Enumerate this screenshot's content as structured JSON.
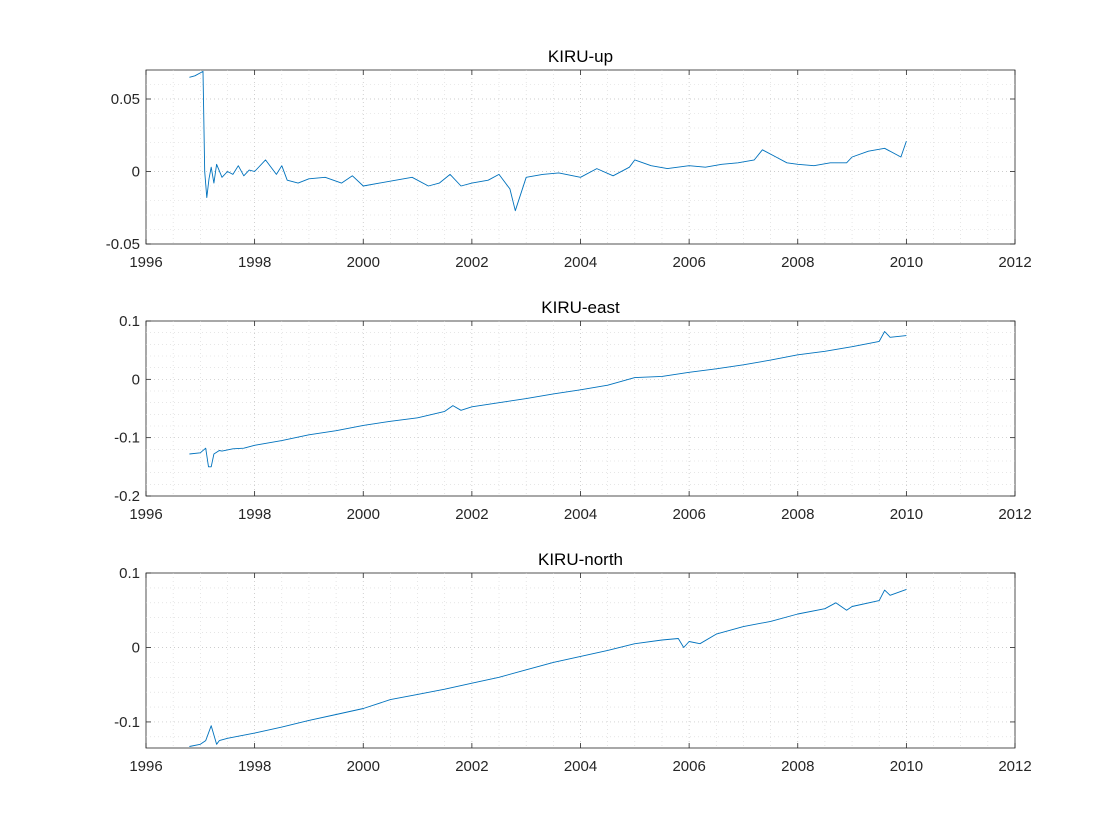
{
  "line_color": "#0072BD",
  "chart_data": [
    {
      "type": "line",
      "title": "KIRU-up",
      "xlim": [
        1996,
        2012
      ],
      "ylim": [
        -0.05,
        0.07
      ],
      "xticks": [
        1996,
        1998,
        2000,
        2002,
        2004,
        2006,
        2008,
        2010,
        2012
      ],
      "xtick_labels": [
        "1996",
        "1998",
        "2000",
        "2002",
        "2004",
        "2006",
        "2008",
        "2010",
        "2012"
      ],
      "yticks": [
        -0.05,
        0,
        0.05
      ],
      "ytick_labels": [
        "-0.05",
        "0",
        "0.05"
      ],
      "grid": "on (dotted, with minor grid)",
      "series": [
        {
          "x": [
            1996.8,
            1996.9,
            1997.0,
            1997.05,
            1997.08,
            1997.12,
            1997.16,
            1997.2,
            1997.25,
            1997.3,
            1997.4,
            1997.5,
            1997.6,
            1997.7,
            1997.8,
            1997.9,
            1998.0,
            1998.2,
            1998.4,
            1998.5,
            1998.6,
            1998.8,
            1999.0,
            1999.3,
            1999.6,
            1999.8,
            2000.0,
            2000.3,
            2000.6,
            2000.9,
            2001.2,
            2001.4,
            2001.6,
            2001.8,
            2002.0,
            2002.3,
            2002.5,
            2002.7,
            2002.8,
            2003.0,
            2003.3,
            2003.6,
            2004.0,
            2004.3,
            2004.6,
            2004.9,
            2005.0,
            2005.3,
            2005.6,
            2006.0,
            2006.3,
            2006.6,
            2006.9,
            2007.2,
            2007.35,
            2007.6,
            2007.8,
            2008.0,
            2008.3,
            2008.6,
            2008.9,
            2009.0,
            2009.3,
            2009.6,
            2009.9,
            2010.0
          ],
          "y": [
            0.065,
            0.066,
            0.068,
            0.069,
            0.0,
            -0.018,
            -0.005,
            0.003,
            -0.008,
            0.005,
            -0.004,
            0.0,
            -0.002,
            0.004,
            -0.003,
            0.001,
            0.0,
            0.008,
            -0.002,
            0.004,
            -0.006,
            -0.008,
            -0.005,
            -0.004,
            -0.008,
            -0.003,
            -0.01,
            -0.008,
            -0.006,
            -0.004,
            -0.01,
            -0.008,
            -0.002,
            -0.01,
            -0.008,
            -0.006,
            -0.002,
            -0.012,
            -0.027,
            -0.004,
            -0.002,
            -0.001,
            -0.004,
            0.002,
            -0.003,
            0.003,
            0.008,
            0.004,
            0.002,
            0.004,
            0.003,
            0.005,
            0.006,
            0.008,
            0.015,
            0.01,
            0.006,
            0.005,
            0.004,
            0.006,
            0.006,
            0.01,
            0.014,
            0.016,
            0.01,
            0.021
          ]
        }
      ]
    },
    {
      "type": "line",
      "title": "KIRU-east",
      "xlim": [
        1996,
        2012
      ],
      "ylim": [
        -0.2,
        0.1
      ],
      "xticks": [
        1996,
        1998,
        2000,
        2002,
        2004,
        2006,
        2008,
        2010,
        2012
      ],
      "xtick_labels": [
        "1996",
        "1998",
        "2000",
        "2002",
        "2004",
        "2006",
        "2008",
        "2010",
        "2012"
      ],
      "yticks": [
        -0.2,
        -0.1,
        0,
        0.1
      ],
      "ytick_labels": [
        "-0.2",
        "-0.1",
        "0",
        "0.1"
      ],
      "grid": "on (dotted, with minor grid)",
      "series": [
        {
          "x": [
            1996.8,
            1997.0,
            1997.1,
            1997.15,
            1997.2,
            1997.25,
            1997.3,
            1997.35,
            1997.4,
            1997.6,
            1997.8,
            1998.0,
            1998.5,
            1999.0,
            1999.5,
            2000.0,
            2000.5,
            2001.0,
            2001.5,
            2001.65,
            2001.8,
            2002.0,
            2002.5,
            2003.0,
            2003.5,
            2004.0,
            2004.5,
            2005.0,
            2005.5,
            2006.0,
            2006.5,
            2007.0,
            2007.5,
            2008.0,
            2008.5,
            2009.0,
            2009.5,
            2009.6,
            2009.7,
            2010.0
          ],
          "y": [
            -0.128,
            -0.126,
            -0.118,
            -0.15,
            -0.15,
            -0.128,
            -0.125,
            -0.122,
            -0.123,
            -0.119,
            -0.118,
            -0.113,
            -0.105,
            -0.095,
            -0.088,
            -0.079,
            -0.072,
            -0.066,
            -0.055,
            -0.045,
            -0.053,
            -0.047,
            -0.04,
            -0.033,
            -0.025,
            -0.018,
            -0.01,
            0.003,
            0.005,
            0.012,
            0.018,
            0.025,
            0.033,
            0.042,
            0.048,
            0.056,
            0.065,
            0.082,
            0.072,
            0.075
          ]
        }
      ]
    },
    {
      "type": "line",
      "title": "KIRU-north",
      "xlim": [
        1996,
        2012
      ],
      "ylim": [
        -0.135,
        0.1
      ],
      "xticks": [
        1996,
        1998,
        2000,
        2002,
        2004,
        2006,
        2008,
        2010,
        2012
      ],
      "xtick_labels": [
        "1996",
        "1998",
        "2000",
        "2002",
        "2004",
        "2006",
        "2008",
        "2010",
        "2012"
      ],
      "yticks": [
        -0.1,
        0,
        0.1
      ],
      "ytick_labels": [
        "-0.1",
        "0",
        "0.1"
      ],
      "grid": "on (dotted, with minor grid)",
      "series": [
        {
          "x": [
            1996.8,
            1997.0,
            1997.1,
            1997.2,
            1997.3,
            1997.35,
            1997.5,
            1998.0,
            1998.5,
            1999.0,
            1999.5,
            2000.0,
            2000.5,
            2001.0,
            2001.5,
            2002.0,
            2002.5,
            2003.0,
            2003.5,
            2004.0,
            2004.5,
            2005.0,
            2005.5,
            2005.8,
            2005.9,
            2006.0,
            2006.2,
            2006.5,
            2007.0,
            2007.5,
            2008.0,
            2008.5,
            2008.7,
            2008.9,
            2009.0,
            2009.5,
            2009.6,
            2009.7,
            2010.0
          ],
          "y": [
            -0.133,
            -0.13,
            -0.125,
            -0.105,
            -0.13,
            -0.125,
            -0.122,
            -0.115,
            -0.107,
            -0.098,
            -0.09,
            -0.082,
            -0.07,
            -0.063,
            -0.056,
            -0.048,
            -0.04,
            -0.03,
            -0.02,
            -0.012,
            -0.004,
            0.005,
            0.01,
            0.012,
            0.0,
            0.008,
            0.005,
            0.018,
            0.028,
            0.035,
            0.045,
            0.052,
            0.06,
            0.05,
            0.055,
            0.063,
            0.077,
            0.07,
            0.078
          ]
        }
      ]
    }
  ]
}
